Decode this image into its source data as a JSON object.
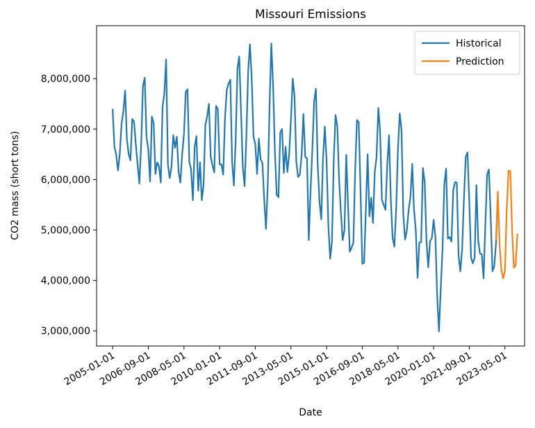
{
  "chart_data": {
    "type": "line",
    "title": "Missouri Emissions",
    "xlabel": "Date",
    "ylabel": "CO2 mass (short tons)",
    "x_ticks": [
      "2005-01-01",
      "2006-09-01",
      "2008-05-01",
      "2010-01-01",
      "2011-09-01",
      "2013-05-01",
      "2015-01-01",
      "2016-09-01",
      "2018-05-01",
      "2020-01-01",
      "2021-09-01",
      "2023-05-01"
    ],
    "y_ticks": [
      3000000,
      4000000,
      5000000,
      6000000,
      7000000,
      8000000
    ],
    "y_tick_labels": [
      "3,000,000",
      "4,000,000",
      "5,000,000",
      "6,000,000",
      "7,000,000",
      "8,000,000"
    ],
    "xlim": [
      "2004-04-01",
      "2024-04-01"
    ],
    "ylim": [
      2700000,
      9050000
    ],
    "grid": false,
    "legend_position": "top-right",
    "series": [
      {
        "name": "Historical",
        "color": "#1f77b4",
        "start": "2005-01",
        "values": [
          7400000,
          6650000,
          6500000,
          6180000,
          6500000,
          7100000,
          7350000,
          7760000,
          6800000,
          6500000,
          6380000,
          7200000,
          7150000,
          6700000,
          6300000,
          5920000,
          6700000,
          7850000,
          8020000,
          6850000,
          6600000,
          5960000,
          7250000,
          7120000,
          6110000,
          6340000,
          6260000,
          5940000,
          7450000,
          7700000,
          8380000,
          6300000,
          6030000,
          6250000,
          6880000,
          6630000,
          6850000,
          6150000,
          5940000,
          6500000,
          6900000,
          7740000,
          7790000,
          6350000,
          6200000,
          5590000,
          6650000,
          6860000,
          5780000,
          6340000,
          5590000,
          5900000,
          7080000,
          7250000,
          7500000,
          6450000,
          6280000,
          6140000,
          7460000,
          7400000,
          6300000,
          6300000,
          6100000,
          7200000,
          7780000,
          7900000,
          7980000,
          6350000,
          5880000,
          6800000,
          8200000,
          8440000,
          7340000,
          6250000,
          5870000,
          6850000,
          8150000,
          8680000,
          8000000,
          6850000,
          6700000,
          6110000,
          6810000,
          6400000,
          6330000,
          5600000,
          5020000,
          5900000,
          7450000,
          8700000,
          7850000,
          6550000,
          5700000,
          5650000,
          6930000,
          7000000,
          6130000,
          6650000,
          6150000,
          6500000,
          7200000,
          8000000,
          7650000,
          6350000,
          6050000,
          6100000,
          6500000,
          7300000,
          6450000,
          6420000,
          4800000,
          5800000,
          6600000,
          7550000,
          7800000,
          6300000,
          5560000,
          5210000,
          6450000,
          7050000,
          6350000,
          5060000,
          4430000,
          4780000,
          6400000,
          7280000,
          7050000,
          6000000,
          5350000,
          4800000,
          5000000,
          6490000,
          5500000,
          4570000,
          4650000,
          4750000,
          6180000,
          7180000,
          7140000,
          5800000,
          4330000,
          4350000,
          5400000,
          6500000,
          5270000,
          5640000,
          5140000,
          6150000,
          6450000,
          7420000,
          6950000,
          5600000,
          5500000,
          5400000,
          6300000,
          6880000,
          5600000,
          4840000,
          4670000,
          5420000,
          6600000,
          7310000,
          6980000,
          5300000,
          4810000,
          5000000,
          5400000,
          5650000,
          6310000,
          5400000,
          5000000,
          4050000,
          4750000,
          4760000,
          6230000,
          5950000,
          4780000,
          4260000,
          4780000,
          4840000,
          5200000,
          4850000,
          3680000,
          2990000,
          3850000,
          4630000,
          5900000,
          6220000,
          4830000,
          4860000,
          4770000,
          5790000,
          5950000,
          5940000,
          4490000,
          4180000,
          4630000,
          5620000,
          6450000,
          6540000,
          5550000,
          4450000,
          4340000,
          4450000,
          5890000,
          4790000,
          4530000,
          4520000,
          4040000,
          5100000,
          6100000,
          6200000,
          5260000,
          4180000,
          4280000,
          4740000,
          5650000
        ]
      },
      {
        "name": "Prediction",
        "color": "#ff7f0e",
        "start": "2022-12",
        "values": [
          4800000,
          5760000,
          4700000,
          4200000,
          4040000,
          4200000,
          5400000,
          6170000,
          6170000,
          5000000,
          4250000,
          4300000,
          4930000
        ]
      }
    ]
  }
}
